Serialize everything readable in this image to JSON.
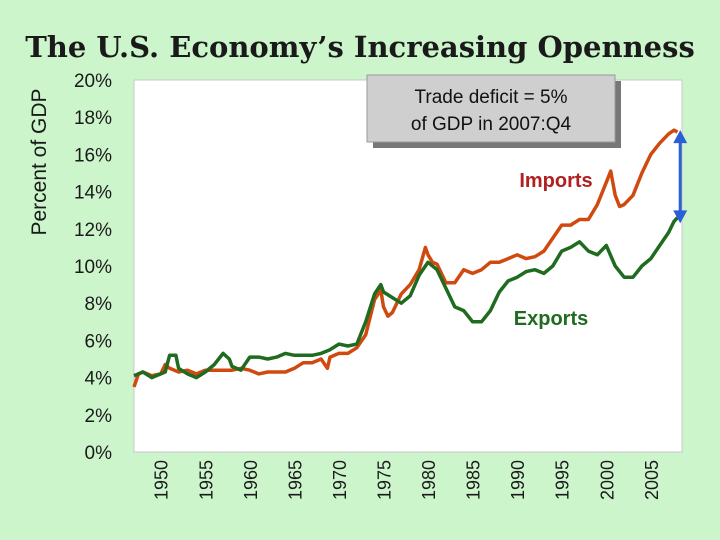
{
  "slide": {
    "title": "The U.S. Economy’s Increasing Openness",
    "background": "#ccf5cc"
  },
  "chart_data": {
    "type": "line",
    "title": "The U.S. Economy’s Increasing Openness",
    "xlabel": "",
    "ylabel": "Percent of GDP",
    "xlim": [
      1947,
      2008.5
    ],
    "ylim": [
      0,
      20
    ],
    "yticks": [
      {
        "value": 0,
        "label": "0%"
      },
      {
        "value": 2,
        "label": "2%"
      },
      {
        "value": 4,
        "label": "4%"
      },
      {
        "value": 6,
        "label": "6%"
      },
      {
        "value": 8,
        "label": "8%"
      },
      {
        "value": 10,
        "label": "10%"
      },
      {
        "value": 12,
        "label": "12%"
      },
      {
        "value": 14,
        "label": "14%"
      },
      {
        "value": 16,
        "label": "16%"
      },
      {
        "value": 18,
        "label": "18%"
      },
      {
        "value": 20,
        "label": "20%"
      }
    ],
    "xticks": [
      {
        "value": 1950,
        "label": "1950"
      },
      {
        "value": 1955,
        "label": "1955"
      },
      {
        "value": 1960,
        "label": "1960"
      },
      {
        "value": 1965,
        "label": "1965"
      },
      {
        "value": 1970,
        "label": "1970"
      },
      {
        "value": 1975,
        "label": "1975"
      },
      {
        "value": 1980,
        "label": "1980"
      },
      {
        "value": 1985,
        "label": "1985"
      },
      {
        "value": 1990,
        "label": "1990"
      },
      {
        "value": 1995,
        "label": "1995"
      },
      {
        "value": 2000,
        "label": "2000"
      },
      {
        "value": 2005,
        "label": "2005"
      }
    ],
    "series": [
      {
        "name": "Imports",
        "color": "#d04a10",
        "label_color": "#b02020",
        "points": [
          [
            1947.0,
            3.5
          ],
          [
            1947.5,
            4.2
          ],
          [
            1948.0,
            4.3
          ],
          [
            1949.0,
            4.1
          ],
          [
            1950.0,
            4.2
          ],
          [
            1950.5,
            4.7
          ],
          [
            1951.0,
            4.5
          ],
          [
            1952.0,
            4.3
          ],
          [
            1953.0,
            4.4
          ],
          [
            1954.0,
            4.2
          ],
          [
            1955.0,
            4.4
          ],
          [
            1956.0,
            4.4
          ],
          [
            1957.0,
            4.4
          ],
          [
            1958.0,
            4.4
          ],
          [
            1959.0,
            4.5
          ],
          [
            1960.0,
            4.4
          ],
          [
            1961.0,
            4.2
          ],
          [
            1962.0,
            4.3
          ],
          [
            1963.0,
            4.3
          ],
          [
            1964.0,
            4.3
          ],
          [
            1965.0,
            4.5
          ],
          [
            1966.0,
            4.8
          ],
          [
            1967.0,
            4.8
          ],
          [
            1968.0,
            5.0
          ],
          [
            1968.7,
            4.5
          ],
          [
            1969.0,
            5.1
          ],
          [
            1970.0,
            5.3
          ],
          [
            1971.0,
            5.3
          ],
          [
            1972.0,
            5.6
          ],
          [
            1973.0,
            6.3
          ],
          [
            1974.0,
            8.2
          ],
          [
            1974.7,
            8.7
          ],
          [
            1975.0,
            7.8
          ],
          [
            1975.5,
            7.3
          ],
          [
            1976.0,
            7.5
          ],
          [
            1977.0,
            8.5
          ],
          [
            1978.0,
            9.0
          ],
          [
            1979.0,
            9.8
          ],
          [
            1979.7,
            11.0
          ],
          [
            1980.0,
            10.6
          ],
          [
            1980.5,
            10.2
          ],
          [
            1981.0,
            10.1
          ],
          [
            1982.0,
            9.1
          ],
          [
            1983.0,
            9.1
          ],
          [
            1984.0,
            9.8
          ],
          [
            1985.0,
            9.6
          ],
          [
            1986.0,
            9.8
          ],
          [
            1987.0,
            10.2
          ],
          [
            1988.0,
            10.2
          ],
          [
            1989.0,
            10.4
          ],
          [
            1990.0,
            10.6
          ],
          [
            1991.0,
            10.4
          ],
          [
            1992.0,
            10.5
          ],
          [
            1993.0,
            10.8
          ],
          [
            1994.0,
            11.5
          ],
          [
            1995.0,
            12.2
          ],
          [
            1996.0,
            12.2
          ],
          [
            1997.0,
            12.5
          ],
          [
            1998.0,
            12.5
          ],
          [
            1999.0,
            13.3
          ],
          [
            2000.0,
            14.5
          ],
          [
            2000.5,
            15.1
          ],
          [
            2001.0,
            13.8
          ],
          [
            2001.5,
            13.2
          ],
          [
            2002.0,
            13.3
          ],
          [
            2003.0,
            13.8
          ],
          [
            2004.0,
            15.0
          ],
          [
            2005.0,
            16.0
          ],
          [
            2006.0,
            16.6
          ],
          [
            2007.0,
            17.1
          ],
          [
            2007.6,
            17.3
          ],
          [
            2008.0,
            17.2
          ]
        ]
      },
      {
        "name": "Exports",
        "color": "#1f6b1f",
        "label_color": "#1f6b1f",
        "points": [
          [
            1947.0,
            4.1
          ],
          [
            1948.0,
            4.3
          ],
          [
            1949.0,
            4.0
          ],
          [
            1950.0,
            4.2
          ],
          [
            1950.5,
            4.3
          ],
          [
            1951.0,
            5.2
          ],
          [
            1951.7,
            5.2
          ],
          [
            1952.0,
            4.5
          ],
          [
            1953.0,
            4.2
          ],
          [
            1954.0,
            4.0
          ],
          [
            1955.0,
            4.3
          ],
          [
            1956.0,
            4.7
          ],
          [
            1957.0,
            5.3
          ],
          [
            1957.7,
            5.0
          ],
          [
            1958.0,
            4.6
          ],
          [
            1959.0,
            4.4
          ],
          [
            1960.0,
            5.1
          ],
          [
            1961.0,
            5.1
          ],
          [
            1962.0,
            5.0
          ],
          [
            1963.0,
            5.1
          ],
          [
            1964.0,
            5.3
          ],
          [
            1965.0,
            5.2
          ],
          [
            1966.0,
            5.2
          ],
          [
            1967.0,
            5.2
          ],
          [
            1968.0,
            5.3
          ],
          [
            1969.0,
            5.5
          ],
          [
            1970.0,
            5.8
          ],
          [
            1971.0,
            5.7
          ],
          [
            1972.0,
            5.8
          ],
          [
            1973.0,
            7.0
          ],
          [
            1974.0,
            8.5
          ],
          [
            1974.7,
            9.0
          ],
          [
            1975.0,
            8.6
          ],
          [
            1976.0,
            8.3
          ],
          [
            1977.0,
            8.0
          ],
          [
            1978.0,
            8.4
          ],
          [
            1979.0,
            9.5
          ],
          [
            1980.0,
            10.2
          ],
          [
            1981.0,
            9.8
          ],
          [
            1982.0,
            8.8
          ],
          [
            1983.0,
            7.8
          ],
          [
            1984.0,
            7.6
          ],
          [
            1985.0,
            7.0
          ],
          [
            1986.0,
            7.0
          ],
          [
            1987.0,
            7.6
          ],
          [
            1988.0,
            8.6
          ],
          [
            1989.0,
            9.2
          ],
          [
            1990.0,
            9.4
          ],
          [
            1991.0,
            9.7
          ],
          [
            1992.0,
            9.8
          ],
          [
            1993.0,
            9.6
          ],
          [
            1994.0,
            10.0
          ],
          [
            1995.0,
            10.8
          ],
          [
            1996.0,
            11.0
          ],
          [
            1997.0,
            11.3
          ],
          [
            1998.0,
            10.8
          ],
          [
            1999.0,
            10.6
          ],
          [
            2000.0,
            11.1
          ],
          [
            2001.0,
            10.0
          ],
          [
            2002.0,
            9.4
          ],
          [
            2003.0,
            9.4
          ],
          [
            2004.0,
            10.0
          ],
          [
            2005.0,
            10.4
          ],
          [
            2006.0,
            11.1
          ],
          [
            2007.0,
            11.8
          ],
          [
            2007.6,
            12.4
          ],
          [
            2008.0,
            12.6
          ]
        ]
      }
    ],
    "annotations": {
      "trade_deficit_line1": "Trade deficit = 5%",
      "trade_deficit_line2": "of GDP in 2007:Q4",
      "imports_label": "Imports",
      "exports_label": "Exports",
      "gap_arrow_color": "#2a5fd8",
      "gap_arrow_year": 2008.3,
      "gap_arrow_from": 17.2,
      "gap_arrow_to": 12.4
    }
  }
}
